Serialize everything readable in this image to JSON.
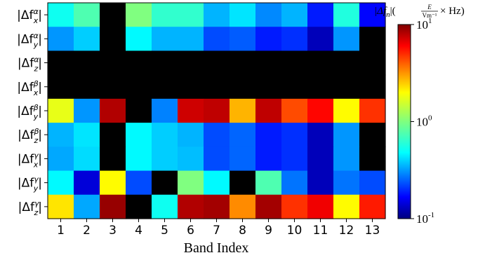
{
  "chart_data": {
    "type": "heatmap",
    "xlabel": "Band Index",
    "x_categories": [
      "1",
      "2",
      "3",
      "4",
      "5",
      "6",
      "7",
      "8",
      "9",
      "10",
      "11",
      "12",
      "13"
    ],
    "y_categories": [
      {
        "base": "|Δf",
        "sub": "x",
        "sup": "α",
        "close": "|"
      },
      {
        "base": "|Δf",
        "sub": "y",
        "sup": "α",
        "close": "|"
      },
      {
        "base": "|Δf",
        "sub": "z",
        "sup": "α",
        "close": "|"
      },
      {
        "base": "|Δf",
        "sub": "x",
        "sup": "β",
        "close": "|"
      },
      {
        "base": "|Δf",
        "sub": "y",
        "sup": "β",
        "close": "|"
      },
      {
        "base": "|Δf",
        "sub": "z",
        "sup": "β",
        "close": "|"
      },
      {
        "base": "|Δf",
        "sub": "x",
        "sup": "γ",
        "close": "|"
      },
      {
        "base": "|Δf",
        "sub": "y",
        "sup": "γ",
        "close": "|"
      },
      {
        "base": "|Δf",
        "sub": "z",
        "sup": "γ",
        "close": "|"
      }
    ],
    "values": [
      [
        0.6,
        0.8,
        0,
        1.0,
        0.7,
        0.7,
        0.4,
        0.5,
        0.33,
        0.4,
        0.2,
        0.65,
        0.18
      ],
      [
        0.35,
        0.45,
        0,
        0.55,
        0.4,
        0.4,
        0.25,
        0.27,
        0.2,
        0.22,
        0.13,
        0.35,
        0
      ],
      [
        0,
        0,
        0,
        0,
        0,
        0,
        0,
        0,
        0,
        0,
        0,
        0,
        0
      ],
      [
        0,
        0,
        0,
        0,
        0,
        0,
        0,
        0,
        0,
        0,
        0,
        0,
        0
      ],
      [
        1.6,
        0.35,
        8.0,
        0,
        0.32,
        7.0,
        7.5,
        2.5,
        7.5,
        4.0,
        5.5,
        1.8,
        4.5
      ],
      [
        0.4,
        0.5,
        0,
        0.55,
        0.45,
        0.4,
        0.25,
        0.28,
        0.2,
        0.22,
        0.13,
        0.35,
        0
      ],
      [
        0.38,
        0.48,
        0,
        0.55,
        0.45,
        0.42,
        0.25,
        0.28,
        0.2,
        0.22,
        0.13,
        0.35,
        0
      ],
      [
        0.55,
        0.15,
        1.8,
        0.25,
        0,
        1.0,
        0.55,
        0,
        0.8,
        0.3,
        0.13,
        0.3,
        0.25
      ],
      [
        2.0,
        0.38,
        9.0,
        0,
        0.6,
        8.0,
        8.5,
        3.0,
        8.5,
        4.5,
        6.0,
        1.8,
        5.0
      ]
    ],
    "zero_color": "#000000",
    "colorbar": {
      "scale": "log",
      "range": [
        0.1,
        10
      ],
      "colormap": "jet",
      "ticks": [
        {
          "value": 10,
          "base": "10",
          "exp": "1"
        },
        {
          "value": 1,
          "base": "10",
          "exp": "0"
        },
        {
          "value": 0.1,
          "base": "10",
          "exp": "-1"
        }
      ],
      "title_main": "|Δf",
      "title_sub": "n",
      "title_unit_num": "E",
      "title_unit_den": "Vm⁻¹",
      "title_unit_tail": "× Hz"
    }
  }
}
